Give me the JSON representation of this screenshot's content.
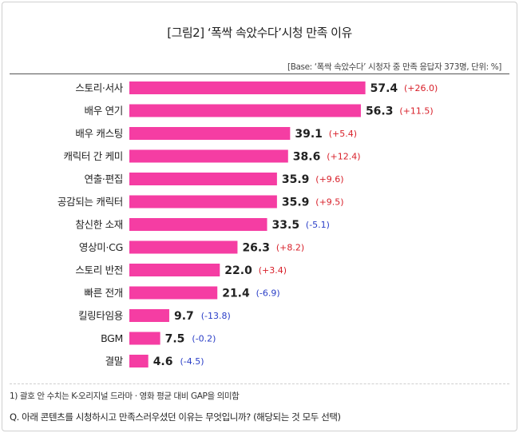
{
  "title": "[그림2] ‘폭싹 속았수다’시청 만족 이유",
  "base_note": "[Base: ‘폭싹 속았수다’ 시청자 중 만족 응답자 373명, 단위: %]",
  "footnote": "1) 괄호 안 수치는 K-오리지널 드라마 · 영화 평균 대비 GAP을 의미함",
  "question": "Q. 아래 콘텐츠를 시청하시고 만족스러우셨던 이유는 무엇입니까? (해당되는 것 모두 선택)",
  "colors": {
    "bar": "#f53da3",
    "positive": "#d8202a",
    "negative": "#2a3ec7"
  },
  "chart_data": {
    "type": "bar",
    "orientation": "horizontal",
    "categories": [
      "스토리·서사",
      "배우 연기",
      "배우 캐스팅",
      "캐릭터 간 케미",
      "연출·편집",
      "공감되는 캐릭터",
      "참신한 소재",
      "영상미·CG",
      "스토리 반전",
      "빠른 전개",
      "킬링타임용",
      "BGM",
      "결말"
    ],
    "values": [
      57.4,
      56.3,
      39.1,
      38.6,
      35.9,
      35.9,
      33.5,
      26.3,
      22.0,
      21.4,
      9.7,
      7.5,
      4.6
    ],
    "value_labels": [
      "57.4",
      "56.3",
      "39.1",
      "38.6",
      "35.9",
      "35.9",
      "33.5",
      "26.3",
      "22.0",
      "21.4",
      "9.7",
      "7.5",
      "4.6"
    ],
    "gap_labels": [
      "(+26.0)",
      "(+11.5)",
      "(+5.4)",
      "(+12.4)",
      "(+9.6)",
      "(+9.5)",
      "(-5.1)",
      "(+8.2)",
      "(+3.4)",
      "(-6.9)",
      "(-13.8)",
      "(-0.2)",
      "(-4.5)"
    ],
    "gaps": [
      26.0,
      11.5,
      5.4,
      12.4,
      9.6,
      9.5,
      -5.1,
      8.2,
      3.4,
      -6.9,
      -13.8,
      -0.2,
      -4.5
    ],
    "xlim": [
      0,
      100
    ],
    "grid": false,
    "legend": "none"
  }
}
